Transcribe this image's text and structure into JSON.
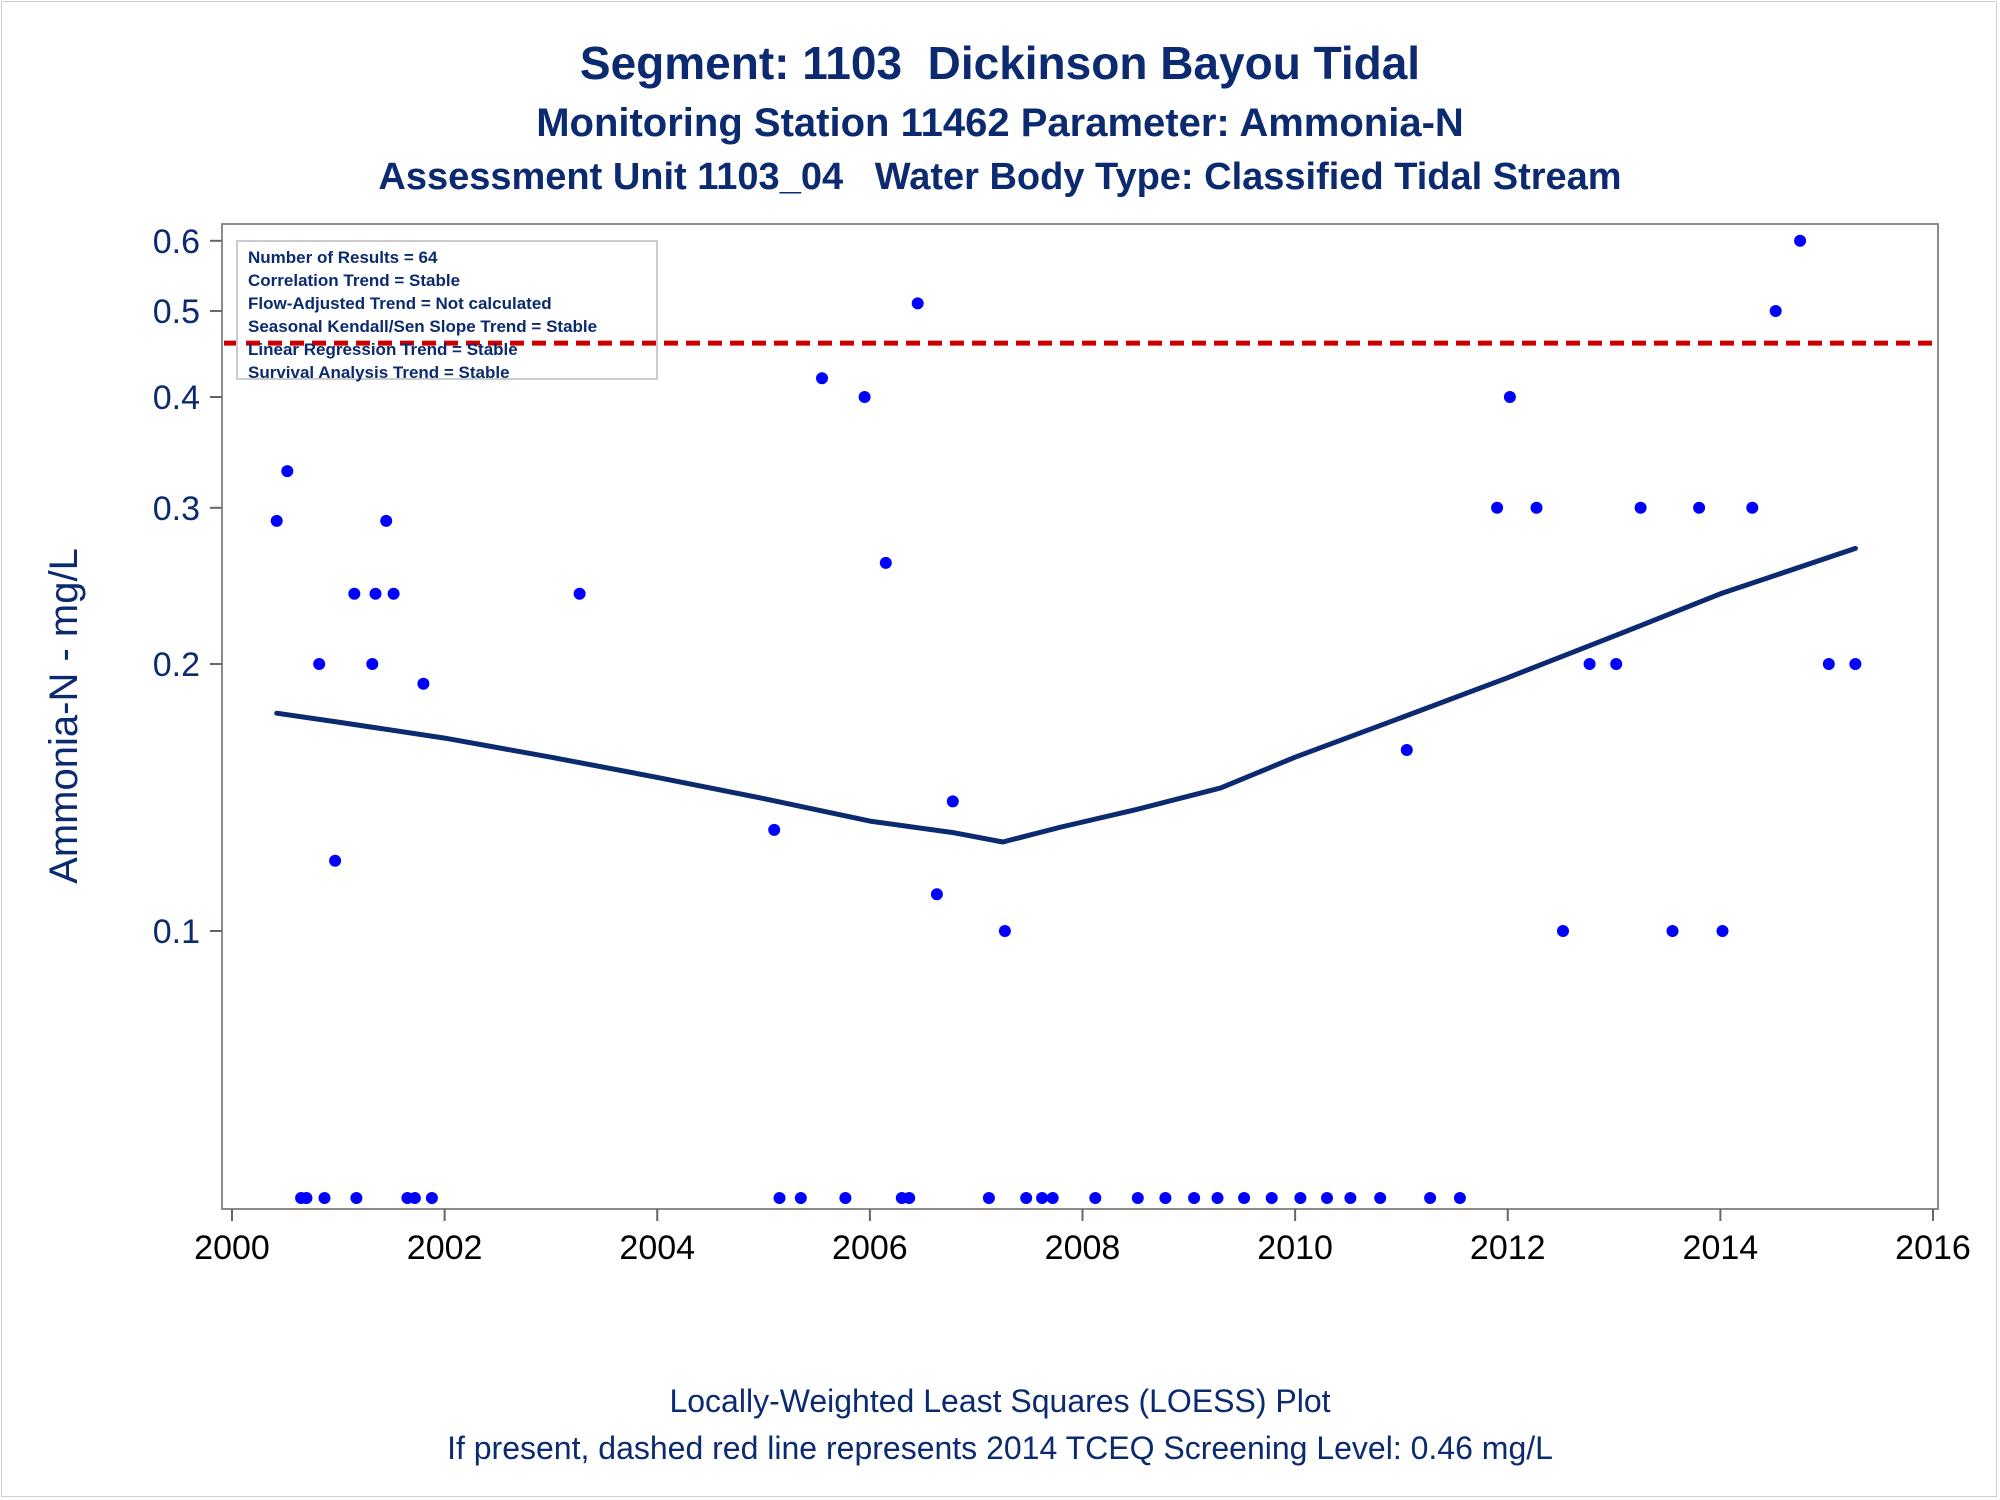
{
  "titles": {
    "line1": "Segment: 1103  Dickinson Bayou Tidal",
    "line2": "Monitoring Station 11462 Parameter: Ammonia-N",
    "line3": "Assessment Unit 1103_04   Water Body Type: Classified Tidal Stream"
  },
  "footer": {
    "line1": "Locally-Weighted Least Squares (LOESS) Plot",
    "line2": "If present, dashed red line represents 2014 TCEQ Screening Level: 0.46 mg/L"
  },
  "stats_box": [
    "Number of Results = 64",
    "Correlation Trend = Stable",
    "Flow-Adjusted Trend = Not calculated",
    "Seasonal Kendall/Sen Slope Trend = Stable",
    "Linear Regression Trend = Stable",
    "Survival Analysis Trend = Stable"
  ],
  "chart_data": {
    "type": "scatter",
    "title": "Segment: 1103  Dickinson Bayou Tidal",
    "xlabel": "",
    "ylabel": "Ammonia-N - mg/L",
    "xlim": [
      2000,
      2016
    ],
    "ylim": [
      0.05,
      0.62
    ],
    "yscale": "log",
    "x_ticks": [
      2000,
      2002,
      2004,
      2006,
      2008,
      2010,
      2012,
      2014,
      2016
    ],
    "y_ticks": [
      0.1,
      0.2,
      0.3,
      0.4,
      0.5,
      0.6
    ],
    "grid": false,
    "legend": "top-left",
    "colors": {
      "points": "#0000ff",
      "loess": "#0b2a6f",
      "screening": "#cc0000",
      "text": "#0b2a6f"
    },
    "screening_level": 0.46,
    "points": [
      [
        2000.42,
        0.29
      ],
      [
        2000.52,
        0.33
      ],
      [
        2000.65,
        0.05
      ],
      [
        2000.7,
        0.05
      ],
      [
        2000.82,
        0.2
      ],
      [
        2000.87,
        0.05
      ],
      [
        2000.97,
        0.12
      ],
      [
        2001.15,
        0.24
      ],
      [
        2001.17,
        0.05
      ],
      [
        2001.32,
        0.2
      ],
      [
        2001.35,
        0.24
      ],
      [
        2001.45,
        0.29
      ],
      [
        2001.52,
        0.24
      ],
      [
        2001.65,
        0.05
      ],
      [
        2001.72,
        0.05
      ],
      [
        2001.8,
        0.19
      ],
      [
        2001.88,
        0.05
      ],
      [
        2003.27,
        0.24
      ],
      [
        2005.1,
        0.13
      ],
      [
        2005.15,
        0.05
      ],
      [
        2005.35,
        0.05
      ],
      [
        2005.55,
        0.42
      ],
      [
        2005.77,
        0.05
      ],
      [
        2005.95,
        0.4
      ],
      [
        2006.15,
        0.26
      ],
      [
        2006.3,
        0.05
      ],
      [
        2006.37,
        0.05
      ],
      [
        2006.45,
        0.51
      ],
      [
        2006.63,
        0.11
      ],
      [
        2006.78,
        0.14
      ],
      [
        2007.12,
        0.05
      ],
      [
        2007.27,
        0.1
      ],
      [
        2007.47,
        0.05
      ],
      [
        2007.62,
        0.05
      ],
      [
        2007.72,
        0.05
      ],
      [
        2008.12,
        0.05
      ],
      [
        2008.52,
        0.05
      ],
      [
        2008.78,
        0.05
      ],
      [
        2009.05,
        0.05
      ],
      [
        2009.27,
        0.05
      ],
      [
        2009.52,
        0.05
      ],
      [
        2009.78,
        0.05
      ],
      [
        2010.05,
        0.05
      ],
      [
        2010.3,
        0.05
      ],
      [
        2010.52,
        0.05
      ],
      [
        2010.8,
        0.05
      ],
      [
        2011.05,
        0.16
      ],
      [
        2011.27,
        0.05
      ],
      [
        2011.55,
        0.05
      ],
      [
        2011.9,
        0.3
      ],
      [
        2012.02,
        0.4
      ],
      [
        2012.27,
        0.3
      ],
      [
        2012.52,
        0.1
      ],
      [
        2012.77,
        0.2
      ],
      [
        2013.02,
        0.2
      ],
      [
        2013.25,
        0.3
      ],
      [
        2013.55,
        0.1
      ],
      [
        2013.8,
        0.3
      ],
      [
        2014.02,
        0.1
      ],
      [
        2014.3,
        0.3
      ],
      [
        2014.52,
        0.5
      ],
      [
        2014.75,
        0.6
      ],
      [
        2015.02,
        0.2
      ],
      [
        2015.27,
        0.2
      ]
    ],
    "loess": [
      [
        2000.42,
        0.176
      ],
      [
        2001.0,
        0.172
      ],
      [
        2002.0,
        0.165
      ],
      [
        2003.0,
        0.157
      ],
      [
        2004.0,
        0.149
      ],
      [
        2005.0,
        0.141
      ],
      [
        2006.0,
        0.133
      ],
      [
        2006.8,
        0.129
      ],
      [
        2007.25,
        0.126
      ],
      [
        2007.8,
        0.131
      ],
      [
        2008.5,
        0.137
      ],
      [
        2009.3,
        0.145
      ],
      [
        2010.0,
        0.157
      ],
      [
        2011.0,
        0.174
      ],
      [
        2012.0,
        0.193
      ],
      [
        2013.0,
        0.215
      ],
      [
        2014.0,
        0.24
      ],
      [
        2015.27,
        0.27
      ]
    ]
  }
}
